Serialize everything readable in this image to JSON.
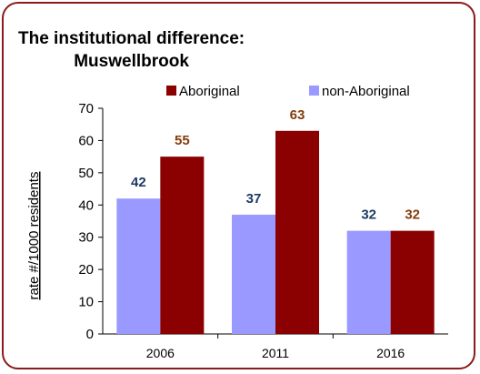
{
  "chart_data": {
    "type": "bar",
    "title": "The institutional difference: Muswellbrook",
    "title_lines": [
      "The institutional difference:",
      "Muswellbrook"
    ],
    "xlabel": "",
    "ylabel": "rate #/1000 residents",
    "categories": [
      "2006",
      "2011",
      "2016"
    ],
    "series": [
      {
        "name": "non-Aboriginal",
        "values": [
          42,
          37,
          32
        ],
        "color": "#9999ff",
        "label_color": "#1f3864"
      },
      {
        "name": "Aboriginal",
        "values": [
          55,
          63,
          32
        ],
        "color": "#8b0000",
        "label_color": "#843c0c"
      }
    ],
    "legend_order": [
      "Aboriginal",
      "non-Aboriginal"
    ],
    "ylim": [
      0,
      70
    ],
    "yticks": [
      0,
      10,
      20,
      30,
      40,
      50,
      60,
      70
    ],
    "grid": false,
    "legend_position": "top"
  }
}
